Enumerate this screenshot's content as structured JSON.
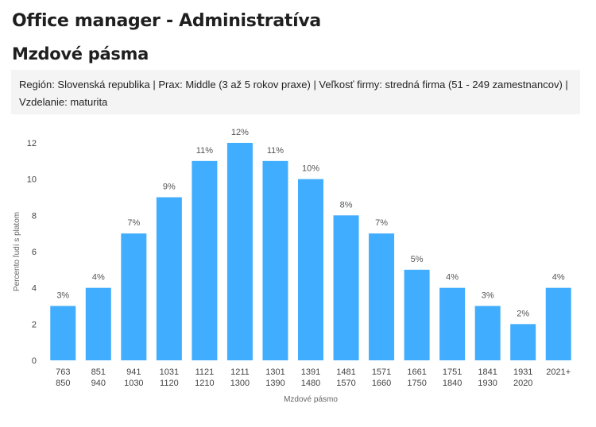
{
  "header": {
    "job_title": "Office manager - Administratíva",
    "section_title": "Mzdové pásma",
    "filters": "Región: Slovenská republika | Prax: Middle (3 až 5 rokov praxe) | Veľkosť firmy: stredná firma (51 - 249 zamestnancov) | Vzdelanie: maturita"
  },
  "chart_data": {
    "type": "bar",
    "title": "",
    "xlabel": "Mzdové pásmo",
    "ylabel": "Percento ľudí s platom",
    "ylim": [
      0,
      12
    ],
    "yticks": [
      0,
      2,
      4,
      6,
      8,
      10,
      12
    ],
    "grid": false,
    "color": "#41adfe",
    "categories": [
      [
        "763",
        "850"
      ],
      [
        "851",
        "940"
      ],
      [
        "941",
        "1030"
      ],
      [
        "1031",
        "1120"
      ],
      [
        "1121",
        "1210"
      ],
      [
        "1211",
        "1300"
      ],
      [
        "1301",
        "1390"
      ],
      [
        "1391",
        "1480"
      ],
      [
        "1481",
        "1570"
      ],
      [
        "1571",
        "1660"
      ],
      [
        "1661",
        "1750"
      ],
      [
        "1751",
        "1840"
      ],
      [
        "1841",
        "1930"
      ],
      [
        "1931",
        "2020"
      ],
      [
        "2021+"
      ]
    ],
    "values": [
      3,
      4,
      7,
      9,
      11,
      12,
      11,
      10,
      8,
      7,
      5,
      4,
      3,
      2,
      4
    ],
    "value_labels": [
      "3%",
      "4%",
      "7%",
      "9%",
      "11%",
      "12%",
      "11%",
      "10%",
      "8%",
      "7%",
      "5%",
      "4%",
      "3%",
      "2%",
      "4%"
    ]
  }
}
